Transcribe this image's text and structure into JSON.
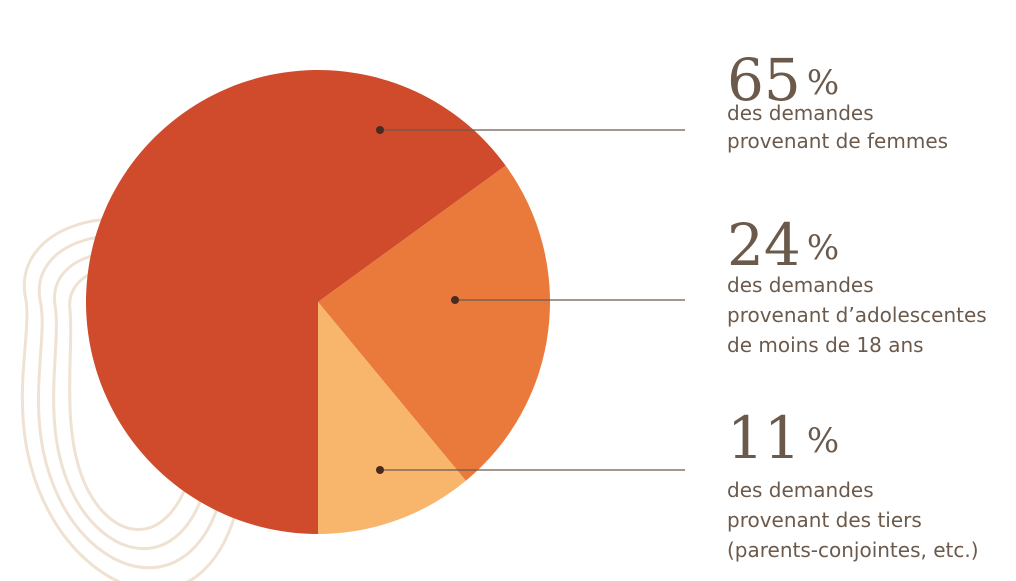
{
  "chart_data": {
    "type": "pie",
    "values": [
      65,
      24,
      11
    ],
    "unit": "%",
    "colors": [
      "#d04a2c",
      "#ea7a3c",
      "#f7b66c"
    ],
    "labels": [
      [
        "des demandes",
        "provenant de femmes"
      ],
      [
        "des demandes",
        "provenant d’adolescentes",
        "de moins de 18 ans"
      ],
      [
        "des demandes",
        "provenant des tiers",
        "(parents-conjointes, etc.)"
      ]
    ]
  }
}
